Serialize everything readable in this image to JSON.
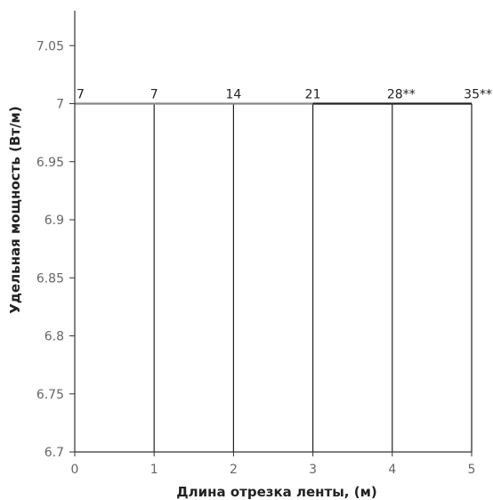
{
  "chart_data": {
    "type": "line",
    "title": "",
    "xlabel": "Длина отрезка ленты, (м)",
    "ylabel": "Удельная мощность (Вт/м)",
    "x": [
      0,
      1,
      2,
      3,
      4,
      5
    ],
    "x_tick_labels": [
      "0",
      "1",
      "2",
      "3",
      "4",
      "5"
    ],
    "y_tick_labels": [
      "6.7",
      "6.75",
      "6.8",
      "6.85",
      "6.9",
      "6.95",
      "7",
      "7.05"
    ],
    "xlim": [
      0,
      5
    ],
    "ylim": [
      6.7,
      7.08
    ],
    "grid": false,
    "drop_lines": true,
    "series": [
      {
        "values": [
          7,
          7,
          7,
          7,
          7,
          7
        ],
        "color": "#888888"
      }
    ],
    "data_labels": [
      "7",
      "7",
      "14",
      "21",
      "28**",
      "35**"
    ]
  }
}
